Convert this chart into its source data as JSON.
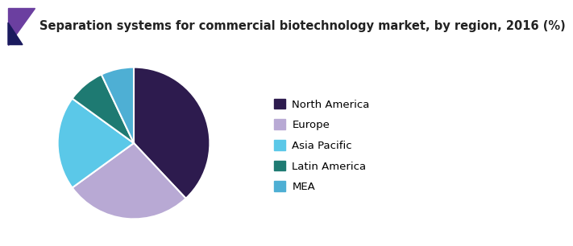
{
  "title": "Separation systems for commercial biotechnology market, by region, 2016 (%)",
  "labels": [
    "North America",
    "Europe",
    "Asia Pacific",
    "Latin America",
    "MEA"
  ],
  "values": [
    38,
    27,
    20,
    8,
    7
  ],
  "colors": [
    "#2d1b4e",
    "#b8a9d4",
    "#5bc8e8",
    "#1e7a72",
    "#4eafd4"
  ],
  "legend_labels": [
    "North America",
    "Europe",
    "Asia Pacific",
    "Latin America",
    "MEA"
  ],
  "title_fontsize": 10.5,
  "legend_fontsize": 9.5,
  "bg_color": "#ffffff",
  "header_bg": "#f5f5f5",
  "title_color": "#222222",
  "accent_purple": "#6b3fa0",
  "accent_navy": "#1a1a5e",
  "accent_blue": "#1a3a8a",
  "header_line_color": "#7b2d8b",
  "startangle": 90
}
